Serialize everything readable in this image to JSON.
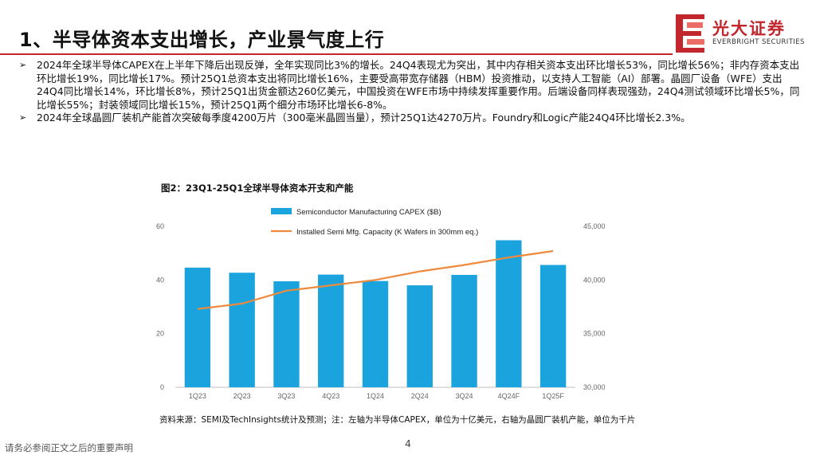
{
  "slide": {
    "title": "1、半导体资本支出增长，产业景气度上行",
    "bullets": [
      "2024年全球半导体CAPEX在上半年下降后出现反弹，全年实现同比3%的增长。24Q4表现尤为突出，其中内存相关资本支出环比增长53%，同比增长56%；非内存资本支出环比增长19%，同比增长17%。预计25Q1总资本支出将同比增长16%，主要受高带宽存储器（HBM）投资推动，以支持人工智能（AI）部署。晶圆厂设备（WFE）支出24Q4同比增长14%，环比增长8%，预计25Q1出货金额达260亿美元，中国投资在WFE市场中持续发挥重要作用。后端设备同样表现强劲，24Q4测试领域环比增长5%，同比增长55%；封装领域同比增长15%，预计25Q1两个细分市场环比增长6-8%。",
      "2024年全球晶圆厂装机产能首次突破每季度4200万片（300毫米晶圆当量），预计25Q1达4270万片。Foundry和Logic产能24Q4环比增长2.3%。"
    ],
    "figure_title": "图2：23Q1-25Q1全球半导体资本开支和产能",
    "source_note": "资料来源：SEMI及TechInsights统计及预测；注：左轴为半导体CAPEX，单位为十亿美元，右轴为晶圆厂装机产能，单位为千片",
    "footer_disclaimer": "请务必参阅正文之后的重要声明",
    "page_number": "4"
  },
  "logo": {
    "name": "光大证券",
    "subtitle": "EVERBRIGHT SECURITIES",
    "color": "#c1272d"
  },
  "colors": {
    "accent": "#c1272d",
    "bar": "#1aa3dd",
    "line": "#ef8a3c"
  },
  "chart_data": {
    "type": "bar",
    "title": "图2：23Q1-25Q1全球半导体资本开支和产能",
    "categories": [
      "1Q23",
      "2Q23",
      "3Q23",
      "4Q23",
      "1Q24",
      "2Q24",
      "3Q24",
      "4Q24F",
      "1Q25F"
    ],
    "series": [
      {
        "name": "Semiconductor Manufacturing CAPEX ($B)",
        "type": "bar",
        "axis": "left",
        "values": [
          44.6,
          42.7,
          39.5,
          42.0,
          39.6,
          38.0,
          41.9,
          54.8,
          45.6
        ]
      },
      {
        "name": "Installed Semi Mfg. Capacity (K Wafers in 300mm eq.)",
        "type": "line",
        "axis": "right",
        "values": [
          37300,
          37800,
          39000,
          39500,
          40000,
          40800,
          41400,
          42100,
          42700
        ]
      }
    ],
    "y_left": {
      "min": 0,
      "max": 60,
      "ticks": [
        "0",
        "20",
        "40",
        "60"
      ]
    },
    "y_right": {
      "min": 30000,
      "max": 45000,
      "ticks": [
        "30,000",
        "35,000",
        "40,000",
        "45,000"
      ]
    },
    "legend_position": "top-center"
  }
}
